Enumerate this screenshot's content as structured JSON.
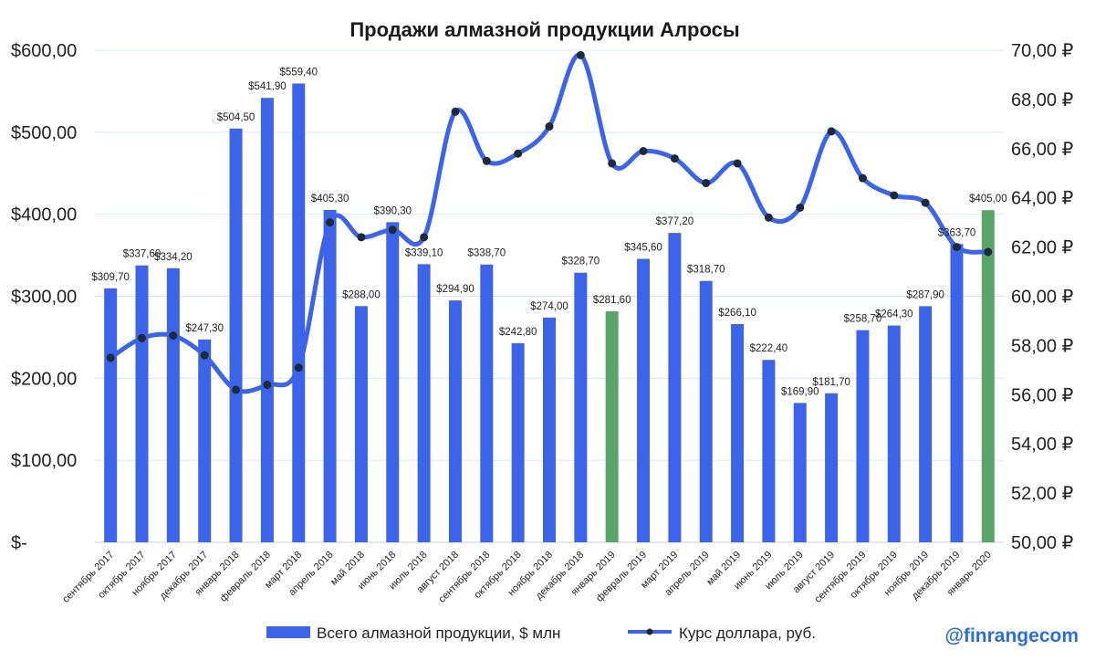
{
  "chart_data": {
    "type": "bar+line",
    "title": "Продажи алмазной продукции Алросы",
    "categories": [
      "сентябрь 2017",
      "октябрь 2017",
      "ноябрь 2017",
      "декабрь 2017",
      "январь 2018",
      "февраль 2018",
      "март 2018",
      "апрель 2018",
      "май 2018",
      "июнь 2018",
      "июль 2018",
      "август 2018",
      "сентябрь 2018",
      "октябрь 2018",
      "ноябрь 2018",
      "декабрь 2018",
      "январь 2019",
      "февраль 2019",
      "март 2019",
      "апрель 2019",
      "май 2019",
      "июнь 2019",
      "июль 2019",
      "август 2019",
      "сентябрь 2019",
      "октябрь 2019",
      "ноябрь 2019",
      "декабрь 2019",
      "январь 2020"
    ],
    "series": [
      {
        "name": "Всего алмазной продукции, $ млн",
        "type": "bar",
        "axis": "left",
        "values": [
          309.7,
          337.6,
          334.2,
          247.3,
          504.5,
          541.9,
          559.4,
          405.3,
          288.0,
          390.3,
          339.1,
          294.9,
          338.7,
          242.8,
          274.0,
          328.7,
          281.6,
          345.6,
          377.2,
          318.7,
          266.1,
          222.4,
          169.9,
          181.7,
          258.7,
          264.3,
          287.9,
          363.7,
          405.0
        ],
        "labels": [
          "$309,70",
          "$337,60",
          "$334,20",
          "$247,30",
          "$504,50",
          "$541,90",
          "$559,40",
          "$405,30",
          "$288,00",
          "$390,30",
          "$339,10",
          "$294,90",
          "$338,70",
          "$242,80",
          "$274,00",
          "$328,70",
          "$281,60",
          "$345,60",
          "$377,20",
          "$318,70",
          "$266,10",
          "$222,40",
          "$169,90",
          "$181,70",
          "$258,70",
          "$264,30",
          "$287,90",
          "$363,70",
          "$405,00"
        ],
        "highlight_indices": [
          16,
          28
        ],
        "color": "#3c64e8",
        "highlight_color": "#5aa469"
      },
      {
        "name": "Курс доллара, руб.",
        "type": "line",
        "axis": "right",
        "values": [
          57.5,
          58.3,
          58.4,
          57.6,
          56.2,
          56.4,
          57.1,
          63.0,
          62.4,
          62.7,
          62.4,
          67.5,
          65.5,
          65.8,
          66.9,
          69.8,
          65.4,
          65.9,
          65.6,
          64.6,
          65.4,
          63.2,
          63.6,
          66.7,
          64.8,
          64.1,
          63.8,
          62.0,
          61.8
        ],
        "color": "#3c64e8",
        "marker_color": "#1d2a3a"
      }
    ],
    "y_left": {
      "ylim": [
        0,
        600
      ],
      "ticks": [
        0,
        100,
        200,
        300,
        400,
        500,
        600
      ],
      "tick_labels": [
        "$-",
        "$100,00",
        "$200,00",
        "$300,00",
        "$400,00",
        "$500,00",
        "$600,00"
      ]
    },
    "y_right": {
      "ylim": [
        50,
        70
      ],
      "ticks": [
        50,
        52,
        54,
        56,
        58,
        60,
        62,
        64,
        66,
        68,
        70
      ],
      "tick_labels": [
        "50,00 ₽",
        "52,00 ₽",
        "54,00 ₽",
        "56,00 ₽",
        "58,00 ₽",
        "60,00 ₽",
        "62,00 ₽",
        "64,00 ₽",
        "66,00 ₽",
        "68,00 ₽",
        "70,00 ₽"
      ]
    },
    "grid": true,
    "legend_position": "bottom"
  },
  "watermark": "@finrangecom"
}
